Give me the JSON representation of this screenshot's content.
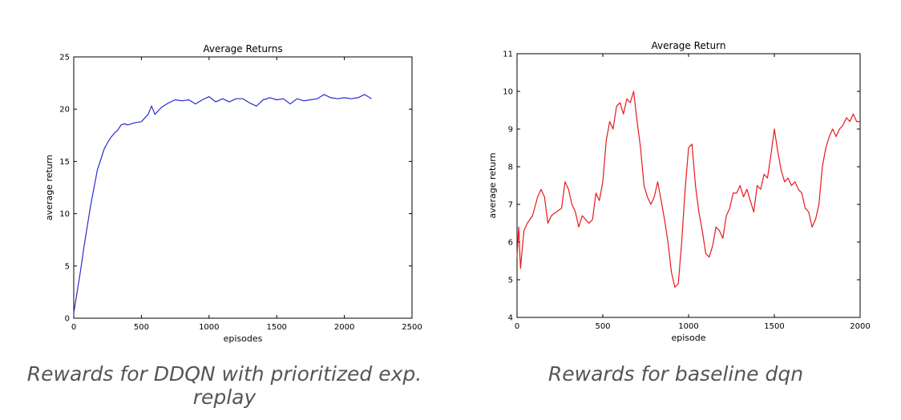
{
  "chart_data": [
    {
      "type": "line",
      "title": "Average Returns",
      "xlabel": "episodes",
      "ylabel": "average return",
      "xlim": [
        0,
        2500
      ],
      "ylim": [
        0,
        25
      ],
      "xticks": [
        "0",
        "500",
        "1000",
        "1500",
        "2000",
        "2500"
      ],
      "yticks": [
        "0",
        "5",
        "10",
        "15",
        "20",
        "25"
      ],
      "caption": "Rewards for DDQN with prioritized exp. replay",
      "series": [
        {
          "color": "#2b2bcc",
          "x": [
            0,
            25,
            50,
            75,
            100,
            125,
            150,
            175,
            200,
            225,
            250,
            275,
            300,
            325,
            350,
            375,
            400,
            450,
            500,
            550,
            575,
            600,
            650,
            700,
            750,
            800,
            850,
            900,
            950,
            1000,
            1050,
            1100,
            1150,
            1200,
            1250,
            1300,
            1350,
            1400,
            1450,
            1500,
            1550,
            1600,
            1650,
            1700,
            1750,
            1800,
            1850,
            1900,
            1950,
            2000,
            2050,
            2100,
            2150,
            2200
          ],
          "y": [
            0.5,
            2.5,
            4.5,
            6.8,
            8.8,
            10.8,
            12.5,
            14.2,
            15.2,
            16.2,
            16.8,
            17.3,
            17.7,
            18.0,
            18.5,
            18.6,
            18.5,
            18.7,
            18.8,
            19.5,
            20.3,
            19.5,
            20.2,
            20.6,
            20.9,
            20.8,
            20.9,
            20.5,
            20.9,
            21.2,
            20.7,
            21.0,
            20.7,
            21.0,
            21.0,
            20.6,
            20.3,
            20.9,
            21.1,
            20.9,
            21.0,
            20.5,
            21.0,
            20.8,
            20.9,
            21.0,
            21.4,
            21.1,
            21.0,
            21.1,
            21.0,
            21.1,
            21.4,
            21.0
          ]
        }
      ]
    },
    {
      "type": "line",
      "title": "Average Return",
      "xlabel": "episode",
      "ylabel": "average return",
      "xlim": [
        0,
        2000
      ],
      "ylim": [
        4,
        11
      ],
      "xticks": [
        "0",
        "500",
        "1000",
        "1500",
        "2000"
      ],
      "yticks": [
        "4",
        "5",
        "6",
        "7",
        "8",
        "9",
        "10",
        "11"
      ],
      "caption": "Rewards for baseline dqn",
      "series": [
        {
          "color": "#e8191c",
          "x": [
            0,
            10,
            20,
            40,
            60,
            90,
            120,
            140,
            160,
            180,
            200,
            230,
            260,
            280,
            300,
            320,
            340,
            360,
            380,
            400,
            420,
            440,
            460,
            480,
            500,
            520,
            540,
            560,
            580,
            600,
            620,
            640,
            660,
            680,
            700,
            720,
            740,
            760,
            780,
            800,
            820,
            840,
            860,
            880,
            900,
            920,
            940,
            960,
            980,
            1000,
            1020,
            1040,
            1060,
            1080,
            1100,
            1120,
            1140,
            1160,
            1180,
            1200,
            1220,
            1240,
            1260,
            1280,
            1300,
            1320,
            1340,
            1360,
            1380,
            1400,
            1420,
            1440,
            1460,
            1480,
            1500,
            1520,
            1540,
            1560,
            1580,
            1600,
            1620,
            1640,
            1660,
            1680,
            1700,
            1720,
            1740,
            1760,
            1780,
            1800,
            1820,
            1840,
            1860,
            1880,
            1900,
            1920,
            1940,
            1960,
            1980,
            2000
          ],
          "y": [
            5.6,
            6.4,
            5.3,
            6.3,
            6.5,
            6.7,
            7.2,
            7.4,
            7.2,
            6.5,
            6.7,
            6.8,
            6.9,
            7.6,
            7.4,
            7.0,
            6.8,
            6.4,
            6.7,
            6.6,
            6.5,
            6.6,
            7.3,
            7.1,
            7.6,
            8.7,
            9.2,
            9.0,
            9.6,
            9.7,
            9.4,
            9.8,
            9.7,
            10.0,
            9.2,
            8.5,
            7.5,
            7.2,
            7.0,
            7.2,
            7.6,
            7.1,
            6.6,
            6.0,
            5.2,
            4.8,
            4.9,
            6.0,
            7.4,
            8.5,
            8.6,
            7.5,
            6.8,
            6.3,
            5.7,
            5.6,
            5.9,
            6.4,
            6.3,
            6.1,
            6.7,
            6.9,
            7.3,
            7.3,
            7.5,
            7.2,
            7.4,
            7.1,
            6.8,
            7.5,
            7.4,
            7.8,
            7.7,
            8.3,
            9.0,
            8.4,
            7.9,
            7.6,
            7.7,
            7.5,
            7.6,
            7.4,
            7.3,
            6.9,
            6.8,
            6.4,
            6.6,
            7.0,
            8.0,
            8.5,
            8.8,
            9.0,
            8.8,
            9.0,
            9.1,
            9.3,
            9.2,
            9.4,
            9.2,
            9.2
          ]
        }
      ]
    }
  ]
}
